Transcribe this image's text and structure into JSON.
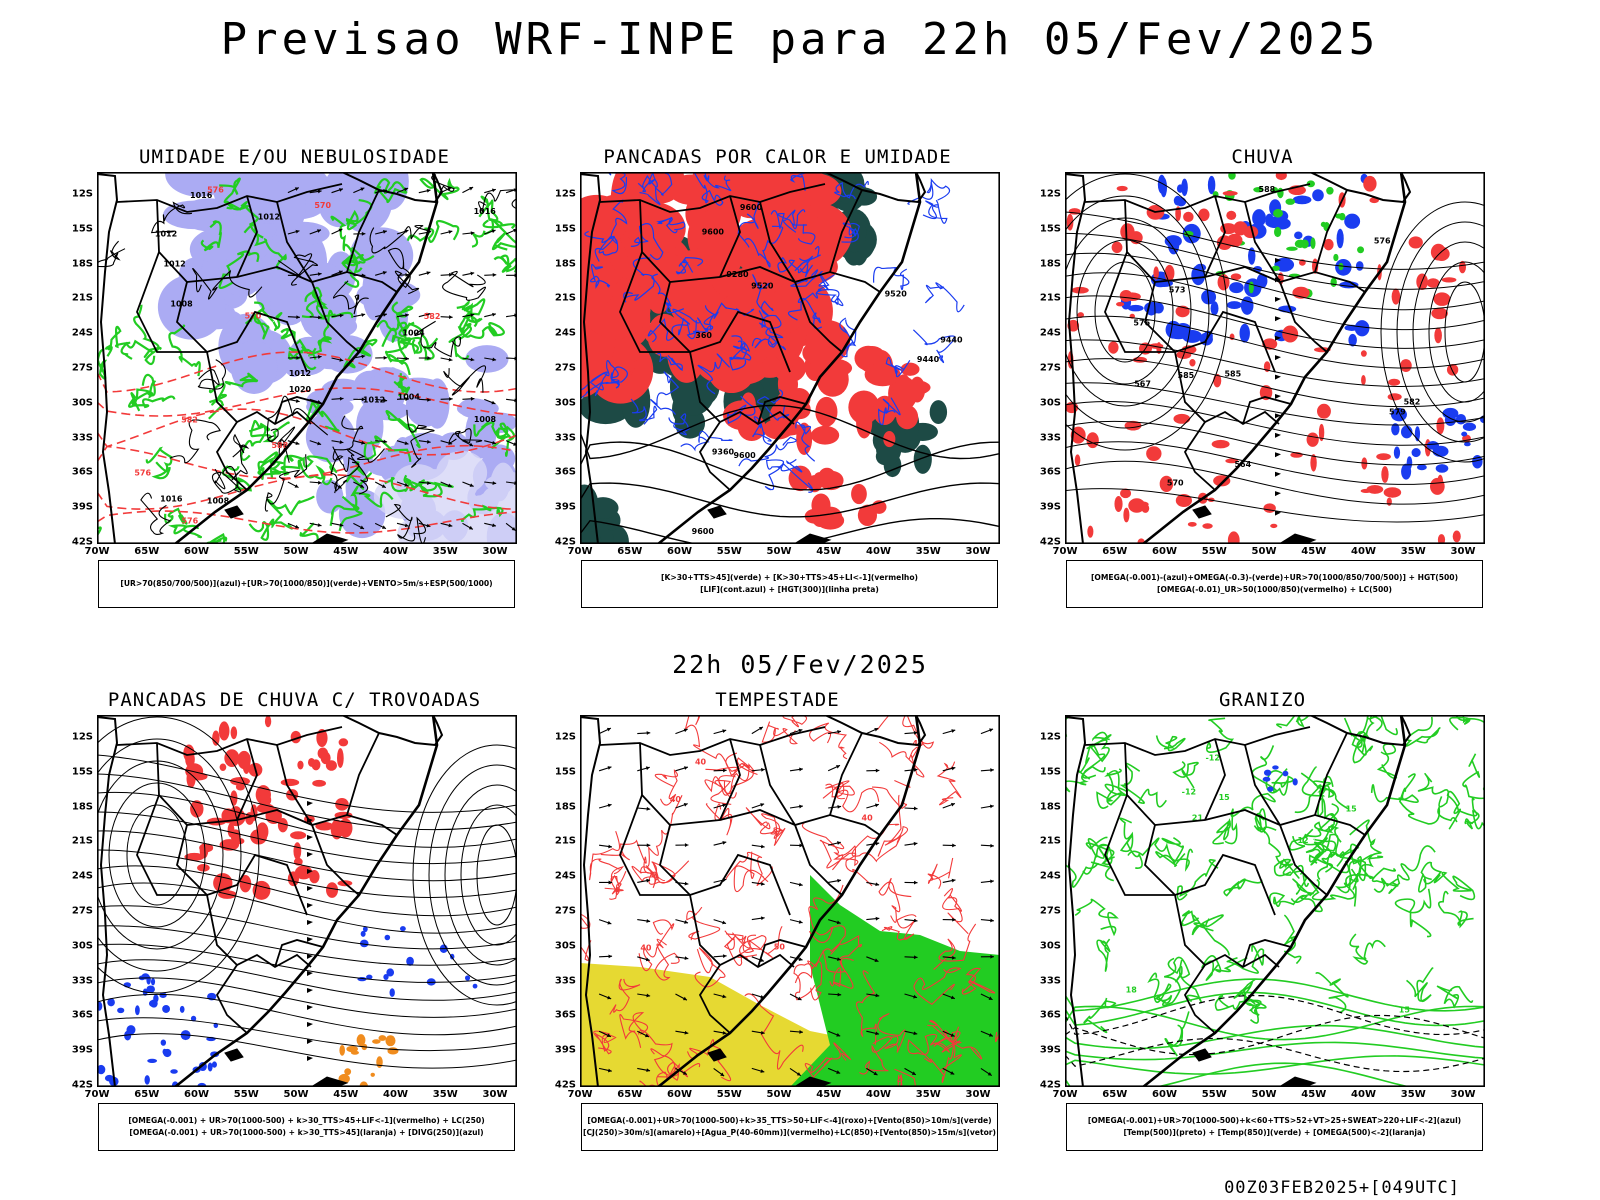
{
  "page": {
    "title": "Previsao WRF-INPE  para 22h 05/Fev/2025",
    "mid_title": "22h 05/Fev/2025",
    "footer": "00Z03FEB2025+[049UTC]"
  },
  "axes": {
    "lat_labels": [
      "12S",
      "15S",
      "18S",
      "21S",
      "24S",
      "27S",
      "30S",
      "33S",
      "36S",
      "39S",
      "42S"
    ],
    "lon_labels": [
      "70W",
      "65W",
      "60W",
      "55W",
      "50W",
      "45W",
      "40W",
      "35W",
      "30W"
    ]
  },
  "colors": {
    "moisture_blue": "#8f8ff0",
    "green": "#22cc22",
    "red": "#f23a3a",
    "dark_teal": "#1d4a45",
    "blue": "#1a3cf0",
    "yellow": "#e6d932",
    "orange": "#f08c1e",
    "purple": "#b464c8"
  },
  "chart_data": [
    {
      "type": "map",
      "id": "umidade",
      "title": "UMIDADE E/OU NEBULOSIDADE",
      "legend": [
        "[UR>70(850/700/500)](azul)+[UR>70(1000/850)](verde)+VENTO>5m/s+ESP(500/1000)"
      ],
      "contour_labels": [
        "1008",
        "1008",
        "1012",
        "1012",
        "1012",
        "1016",
        "1016",
        "1016",
        "1020",
        "1004",
        "1008",
        "1012",
        "1012",
        "1004",
        "576",
        "582",
        "576",
        "570",
        "582",
        "588",
        "576",
        "570"
      ]
    },
    {
      "type": "map",
      "id": "pancadas_calor",
      "title": "PANCADAS POR CALOR E UMIDADE",
      "legend": [
        "[K>30+TTS>45](verde) + [K>30+TTS>45+LI<-1](vermelho)",
        "[LIF](cont.azul) + [HGT(300)](linha preta)"
      ],
      "contour_labels": [
        "9600",
        "9600",
        "9600",
        "9600",
        "9520",
        "9520",
        "9440",
        "9440",
        "9360",
        "9280",
        "360"
      ]
    },
    {
      "type": "map",
      "id": "chuva",
      "title": "CHUVA",
      "legend": [
        "[OMEGA(-0.001)-(azul)+OMEGA(-0.3)-(verde)+UR>70(1000/850/700/500)] + HGT(500)",
        "[OMEGA(-0.01)_UR>50(1000/850)(vermelho) + LC(500)"
      ],
      "contour_labels": [
        "585",
        "588",
        "585",
        "582",
        "579",
        "576",
        "576",
        "573",
        "570",
        "567",
        "564"
      ]
    },
    {
      "type": "map",
      "id": "pancadas_trovoadas",
      "title": "PANCADAS DE CHUVA C/ TROVOADAS",
      "legend": [
        "[OMEGA(-0.001) + UR>70(1000-500) + k>30_TTS>45+LIF<-1](vermelho) + LC(250)",
        "[OMEGA(-0.001) + UR>70(1000-500) + k>30_TTS>45](laranja) + [DIVG(250)](azul)"
      ],
      "contour_labels": []
    },
    {
      "type": "map",
      "id": "tempestade",
      "title": "TEMPESTADE",
      "legend": [
        "[OMEGA(-0.001)+UR>70(1000-500)+k>35_TTS>50+LIF<-4](roxo)+[Vento(850)>10m/s](verde)",
        "[CJ(250)>30m/s](amarelo)+[Agua_P(40-60mm)](vermelho)+LC(850)+[Vento(850)>15m/s](vetor)"
      ],
      "contour_labels": [
        "40",
        "40",
        "40",
        "40",
        "50",
        "40"
      ]
    },
    {
      "type": "map",
      "id": "granizo",
      "title": "GRANIZO",
      "legend": [
        "[OMEGA(-0.001)+UR>70(1000-500)+k<60+TTS>52+VT>25+SWEAT>220+LIF<-2](azul)",
        "[Temp(500)](preto) + [Temp(850)](verde) + [OMEGA(500)<-2](laranja)"
      ],
      "contour_labels": [
        "-12",
        "-12",
        "15",
        "15",
        "12",
        "21",
        "18",
        "15"
      ]
    }
  ]
}
